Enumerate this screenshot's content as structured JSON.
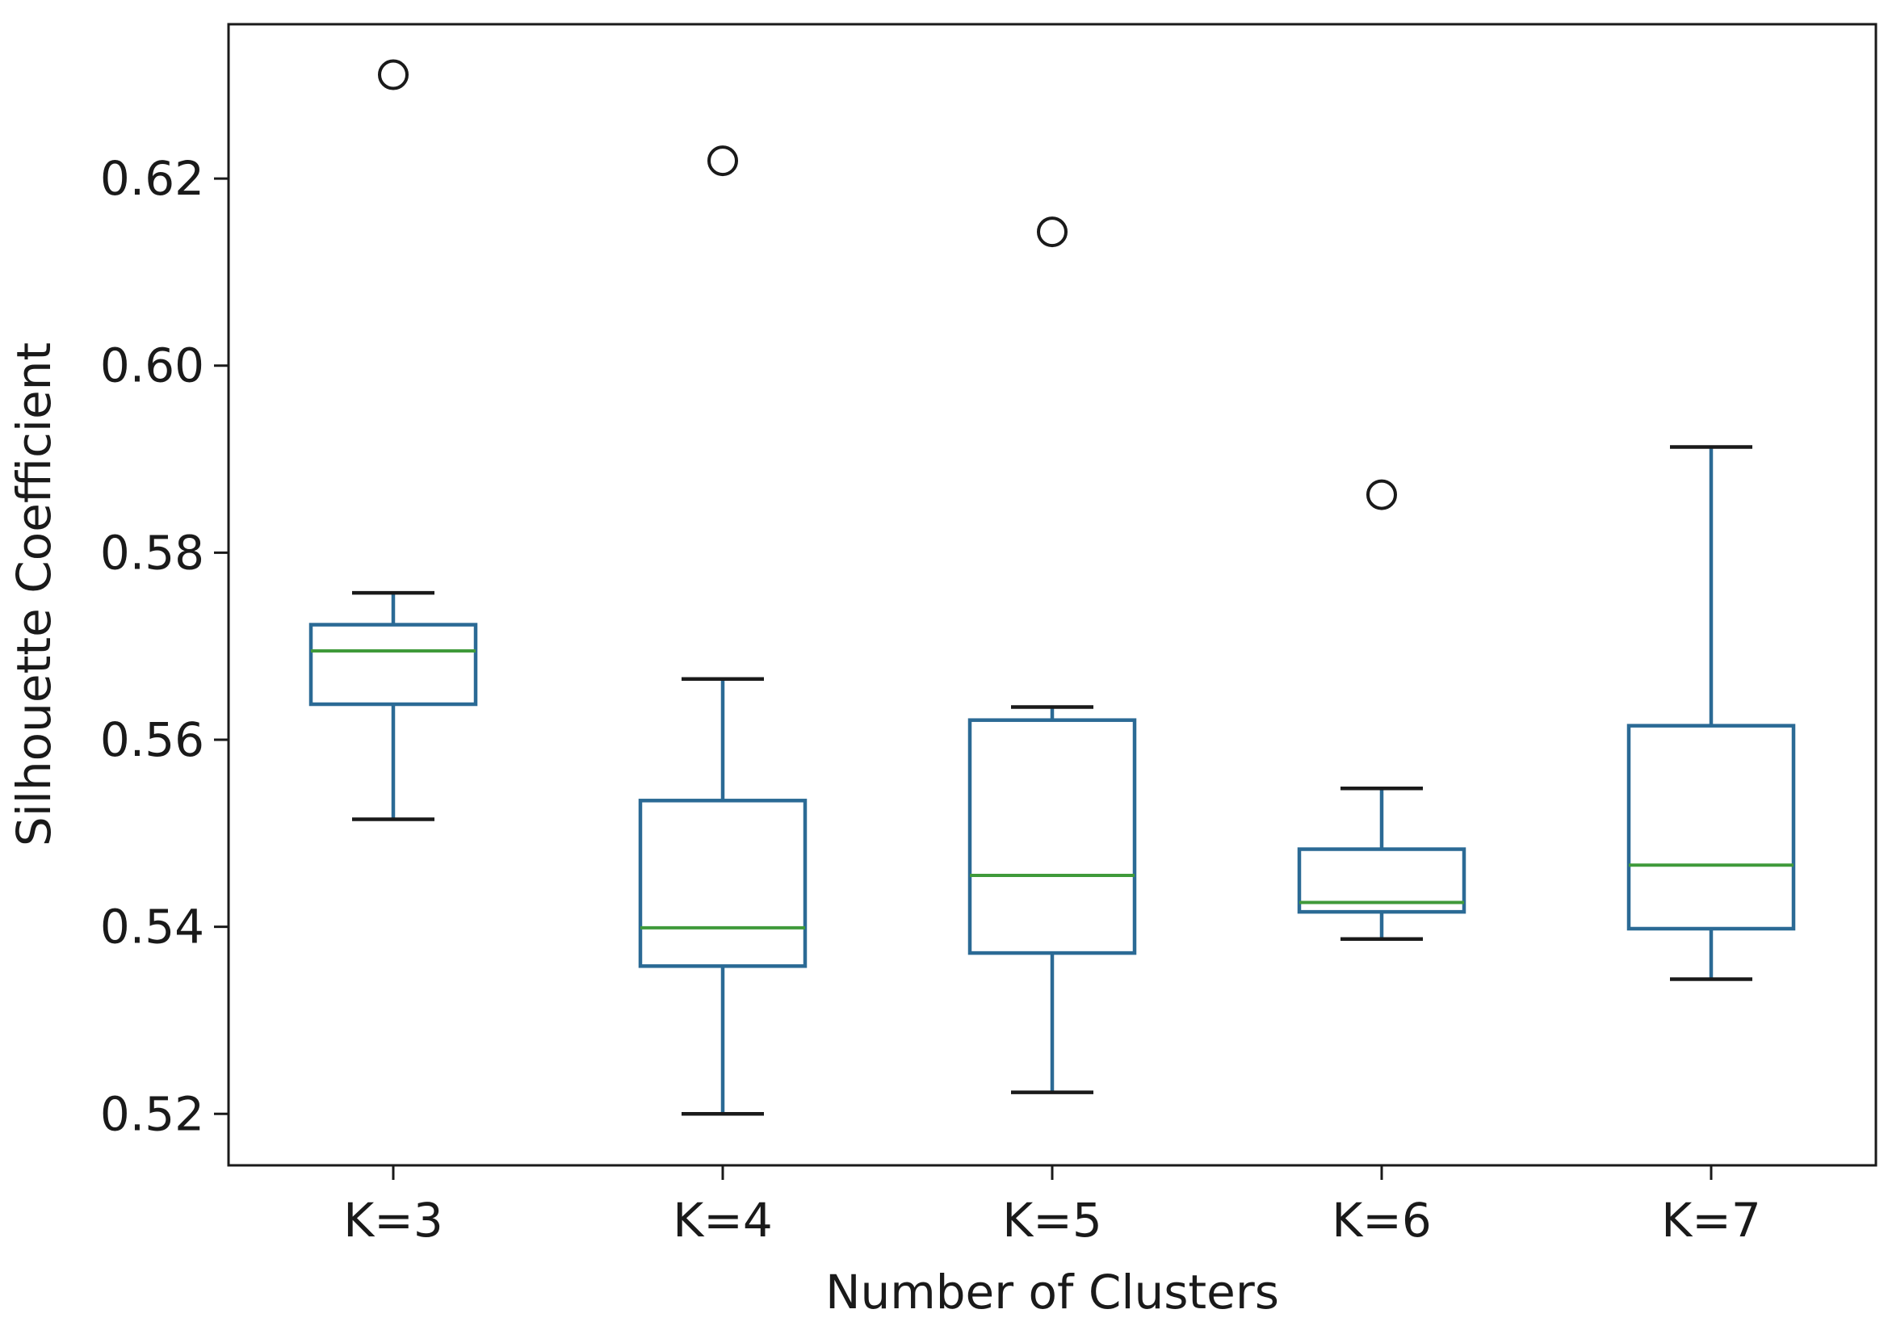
{
  "chart_data": {
    "type": "boxplot",
    "title": "",
    "xlabel": "Number of Clusters",
    "ylabel": "Silhouette Coefficient",
    "ylim": [
      0.5145,
      0.6365
    ],
    "yticks": [
      "0.52",
      "0.54",
      "0.56",
      "0.58",
      "0.60",
      "0.62"
    ],
    "categories": [
      "K=3",
      "K=4",
      "K=5",
      "K=6",
      "K=7"
    ],
    "boxes": [
      {
        "label": "K=3",
        "whisker_low": 0.5515,
        "q1": 0.5638,
        "median": 0.5695,
        "q3": 0.5723,
        "whisker_high": 0.5757,
        "outliers": [
          0.6311
        ]
      },
      {
        "label": "K=4",
        "whisker_low": 0.52,
        "q1": 0.5358,
        "median": 0.5399,
        "q3": 0.5535,
        "whisker_high": 0.5665,
        "outliers": [
          0.6219
        ]
      },
      {
        "label": "K=5",
        "whisker_low": 0.5223,
        "q1": 0.5372,
        "median": 0.5455,
        "q3": 0.5621,
        "whisker_high": 0.5635,
        "outliers": [
          0.6143
        ]
      },
      {
        "label": "K=6",
        "whisker_low": 0.5387,
        "q1": 0.5416,
        "median": 0.5426,
        "q3": 0.5483,
        "whisker_high": 0.5548,
        "outliers": [
          0.5862
        ]
      },
      {
        "label": "K=7",
        "whisker_low": 0.5344,
        "q1": 0.5398,
        "median": 0.5466,
        "q3": 0.5615,
        "whisker_high": 0.5913,
        "outliers": []
      }
    ],
    "colors": {
      "box": "#2b6a95",
      "median": "#3f9a3a",
      "whisker": "#2b6a95",
      "cap": "#1a1a1a",
      "outlier": "#1a1a1a",
      "axis": "#1a1a1a"
    }
  }
}
